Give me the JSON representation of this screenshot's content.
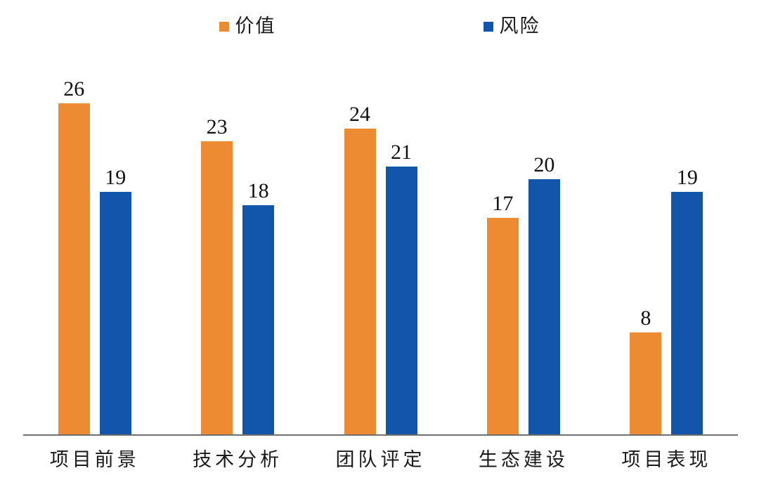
{
  "chart_data": {
    "type": "bar",
    "title": "",
    "xlabel": "",
    "ylabel": "",
    "categories": [
      "项目前景",
      "技术分析",
      "团队评定",
      "生态建设",
      "项目表现"
    ],
    "series": [
      {
        "name": "价值",
        "color": "#ED8B33",
        "values": [
          26,
          23,
          24,
          17,
          8
        ]
      },
      {
        "name": "风险",
        "color": "#1156AA",
        "values": [
          19,
          18,
          21,
          20,
          19
        ]
      }
    ],
    "ylim": [
      0,
      30
    ],
    "grid": false,
    "y_axis_visible": false,
    "legend_position": "top",
    "value_labels": true
  },
  "colors": {
    "background": "#FFFFFF",
    "axis_line": "#707070",
    "text": "#111111"
  }
}
